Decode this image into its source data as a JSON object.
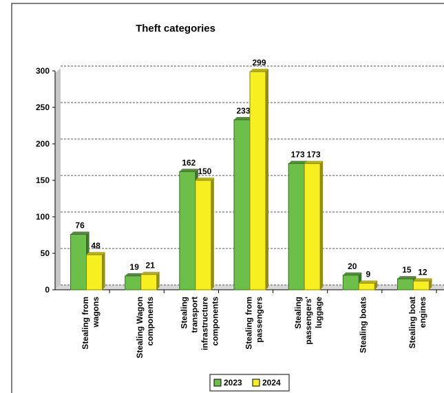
{
  "chart_data": {
    "type": "bar3d",
    "title": "Theft categories",
    "categories": [
      "Stealing from wagons",
      "Stealing Wagon components",
      "Stealing transport infrastructure components",
      "Stealing from passengers",
      "Stealing passengers' luggage",
      "Stealing boats",
      "Stealing boat engines"
    ],
    "series": [
      {
        "name": "2023",
        "color": "#6cc04a",
        "values": [
          76,
          19,
          162,
          233,
          173,
          20,
          15
        ]
      },
      {
        "name": "2024",
        "color": "#f7ef1f",
        "values": [
          48,
          21,
          150,
          299,
          173,
          9,
          12
        ]
      }
    ],
    "ylim": [
      0,
      300
    ],
    "yticks": [
      0,
      50,
      100,
      150,
      200,
      250,
      300
    ],
    "grid": true,
    "legend": "bottom"
  }
}
